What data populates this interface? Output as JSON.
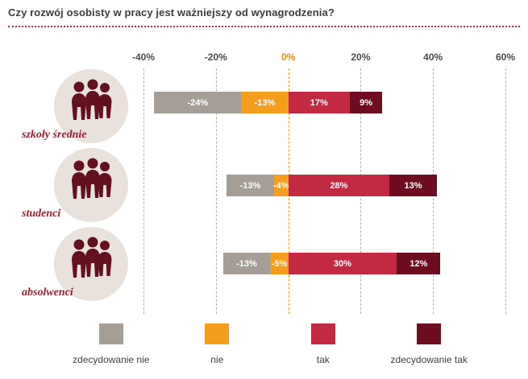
{
  "title": "Czy rozwój osobisty w pracy jest ważniejszy od wynagrodzenia?",
  "colors": {
    "title_text": "#3c3c3c",
    "divider_dotted": "#c1293f",
    "grid_line": "#b8b2ab",
    "zero_grid_line": "#f09a1e",
    "tick_text": "#4b4b49",
    "zero_tick_text": "#ee8b10",
    "category_label": "#9c1b2e",
    "circle_bg": "#e9e2dc",
    "silhouette": "#63101f",
    "bar_label_text": "#ffffff"
  },
  "chart_data": {
    "type": "bar",
    "orientation": "horizontal",
    "diverging": true,
    "title": "Czy rozwój osobisty w pracy jest ważniejszy od wynagrodzenia?",
    "categories": [
      "szkoły średnie",
      "studenci",
      "absolwenci"
    ],
    "series": [
      {
        "name": "zdecydowanie nie",
        "color": "#a49e97",
        "values": [
          -24,
          -13,
          -13
        ]
      },
      {
        "name": "nie",
        "color": "#f59d1d",
        "values": [
          -13,
          -4,
          -5
        ]
      },
      {
        "name": "tak",
        "color": "#c22a42",
        "values": [
          17,
          28,
          30
        ]
      },
      {
        "name": "zdecydowanie tak",
        "color": "#6d0d1f",
        "values": [
          9,
          13,
          12
        ]
      }
    ],
    "bar_labels": [
      [
        "-24%",
        "-13%",
        "17%",
        "9%"
      ],
      [
        "-13%",
        "-4%",
        "28%",
        "13%"
      ],
      [
        "-13%",
        "-5%",
        "30%",
        "12%"
      ]
    ],
    "x_ticks": [
      -40,
      -20,
      0,
      20,
      40,
      60
    ],
    "x_tick_labels": [
      "-40%",
      "-20%",
      "0%",
      "20%",
      "40%",
      "60%"
    ],
    "xlim": [
      -40,
      60
    ],
    "grid": "vertical-dashed",
    "legend_position": "bottom",
    "legend_labels": [
      "zdecydowanie nie",
      "nie",
      "tak",
      "zdecydowanie tak"
    ]
  }
}
